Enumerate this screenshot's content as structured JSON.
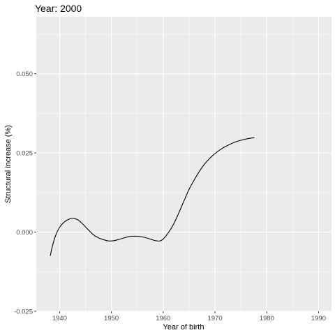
{
  "chart_data": {
    "type": "line",
    "title": "Year: 2000",
    "xlabel": "Year of birth",
    "ylabel": "Structural increase (%)",
    "xlim": [
      1935.5,
      1992.5
    ],
    "ylim": [
      -0.025,
      0.068
    ],
    "x_ticks": [
      1940,
      1950,
      1960,
      1970,
      1980,
      1990
    ],
    "x_tick_labels": [
      "1940",
      "1950",
      "1960",
      "1970",
      "1980",
      "1990"
    ],
    "y_ticks": [
      -0.025,
      0.0,
      0.025,
      0.05
    ],
    "y_tick_labels": [
      "-0.025",
      "0.000",
      "0.025",
      "0.050"
    ],
    "grid": true,
    "panel_background": "#ebebeb",
    "line_color": "#000000",
    "series": [
      {
        "x": [
          1938.2,
          1938.6,
          1939.2,
          1940.0,
          1941.0,
          1942.0,
          1942.8,
          1943.6,
          1944.5,
          1945.5,
          1946.5,
          1947.5,
          1948.5,
          1949.5,
          1950.5,
          1951.5,
          1952.5,
          1953.5,
          1954.5,
          1955.5,
          1956.5,
          1957.5,
          1958.5,
          1959.3,
          1960.0,
          1961.0,
          1962.0,
          1963.0,
          1964.0,
          1965.0,
          1966.0,
          1967.0,
          1968.0,
          1969.0,
          1970.0,
          1971.0,
          1972.0,
          1973.0,
          1974.0,
          1975.0,
          1976.0,
          1977.0,
          1977.6
        ],
        "y": [
          -0.0075,
          -0.0045,
          -0.0012,
          0.0015,
          0.0033,
          0.0042,
          0.0043,
          0.0038,
          0.0025,
          0.0008,
          -0.0008,
          -0.0018,
          -0.0024,
          -0.0028,
          -0.0027,
          -0.0023,
          -0.0018,
          -0.0014,
          -0.0013,
          -0.0014,
          -0.0017,
          -0.0022,
          -0.0027,
          -0.0028,
          -0.0022,
          -0.0002,
          0.0025,
          0.006,
          0.0098,
          0.0135,
          0.0165,
          0.0192,
          0.0215,
          0.0233,
          0.0248,
          0.026,
          0.027,
          0.0278,
          0.0285,
          0.029,
          0.0294,
          0.0297,
          0.0298
        ]
      }
    ]
  }
}
